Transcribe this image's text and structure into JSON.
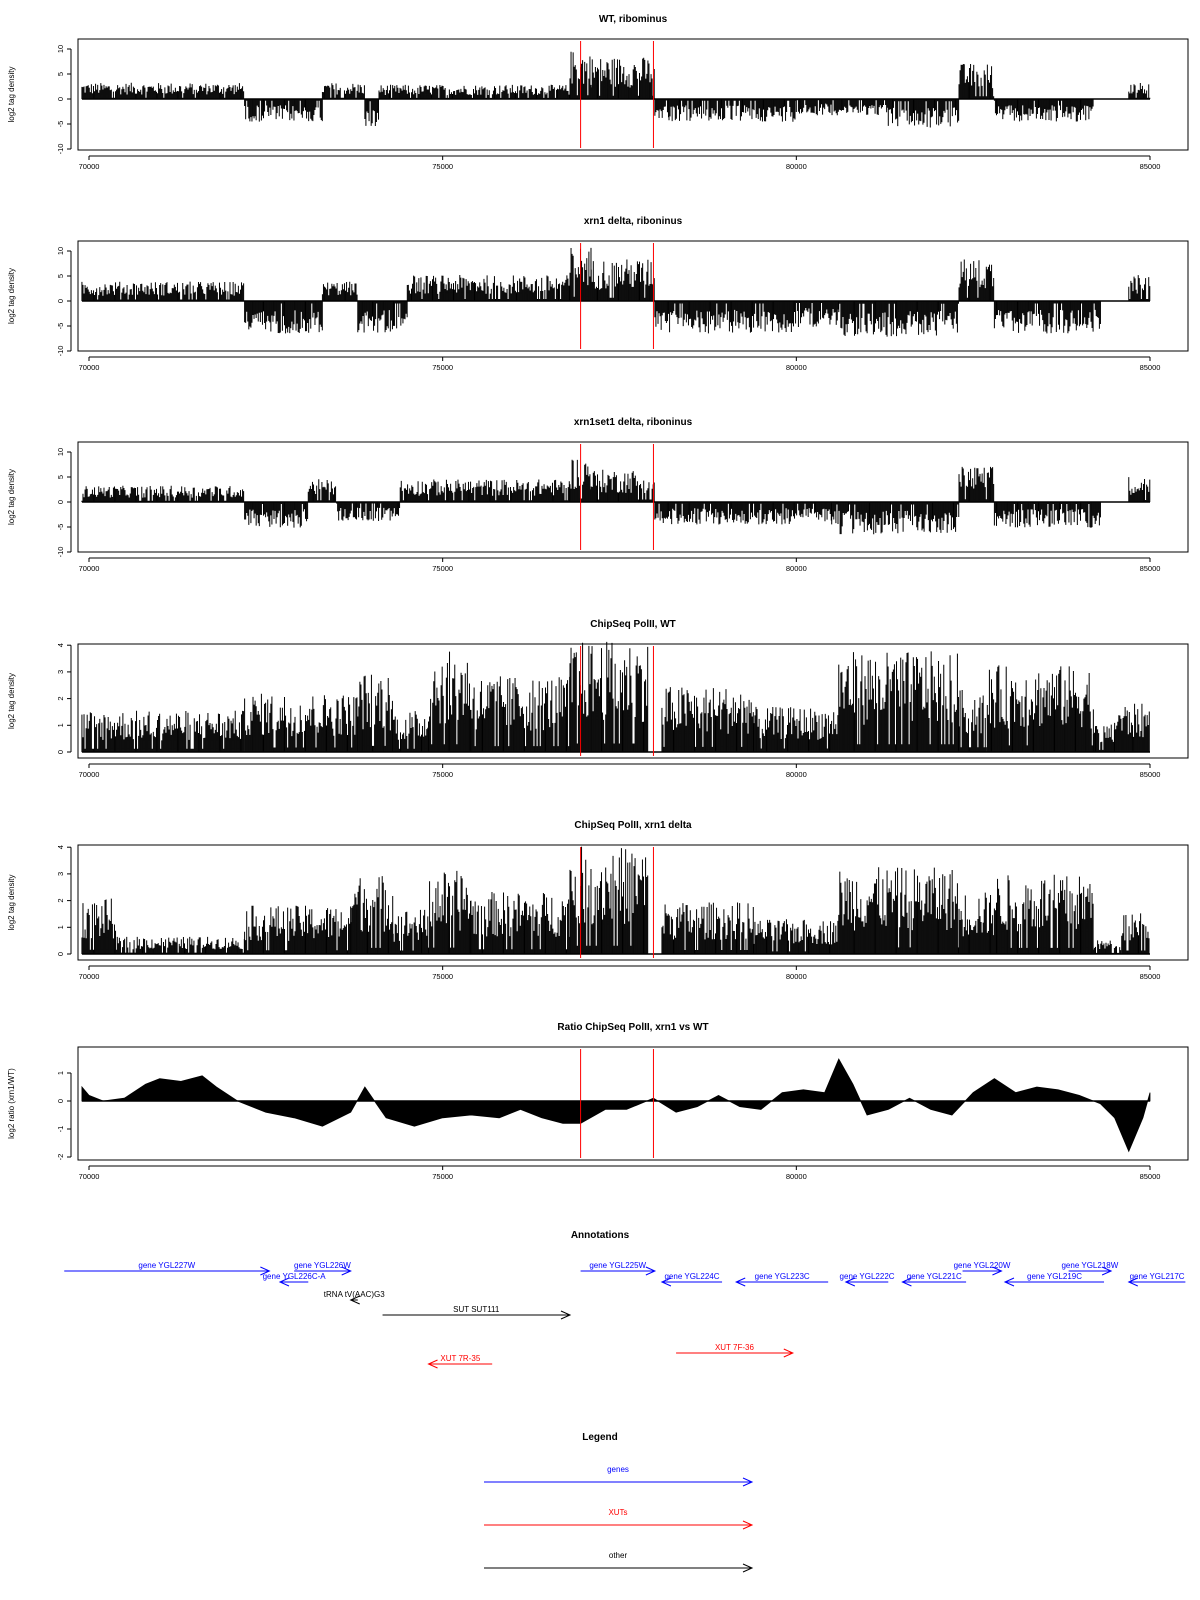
{
  "colors": {
    "gene": "#0000ff",
    "xut": "#ff0000",
    "other": "#000000",
    "marker": "#ff0000"
  },
  "marker_x": [
    76950,
    77980
  ],
  "chart_data": [
    {
      "type": "bar",
      "title": "WT, ribominus",
      "ylabel": "log2 tag density",
      "xlim": [
        70000,
        85000
      ],
      "ylim": [
        -10,
        10
      ],
      "xticks": [
        "70000",
        "75000",
        "80000",
        "85000"
      ],
      "yticks": [
        "10",
        "5",
        "0",
        "-5",
        "-10"
      ],
      "grid": false,
      "segments": [
        {
          "x": [
            69900,
            72200
          ],
          "y": 2.5
        },
        {
          "x": [
            72200,
            73300
          ],
          "y": -3.5
        },
        {
          "x": [
            73300,
            73900
          ],
          "y": 2.5
        },
        {
          "x": [
            73900,
            74100
          ],
          "y": -4.5
        },
        {
          "x": [
            74100,
            76800
          ],
          "y": 2.2
        },
        {
          "x": [
            76800,
            77100
          ],
          "y": 7.5
        },
        {
          "x": [
            77100,
            78000
          ],
          "y": 6.5
        },
        {
          "x": [
            78000,
            78200
          ],
          "y": -3
        },
        {
          "x": [
            78200,
            80000
          ],
          "y": -3.5
        },
        {
          "x": [
            80000,
            81300
          ],
          "y": -2.5
        },
        {
          "x": [
            81300,
            82300
          ],
          "y": -4.5
        },
        {
          "x": [
            82300,
            82800
          ],
          "y": 5.5
        },
        {
          "x": [
            82800,
            84200
          ],
          "y": -3.5
        },
        {
          "x": [
            84200,
            84700
          ],
          "y": 0
        },
        {
          "x": [
            84700,
            85000
          ],
          "y": 2.5
        }
      ]
    },
    {
      "type": "bar",
      "title": "xrn1 delta, riboninus",
      "ylabel": "log2 tag density",
      "xlim": [
        70000,
        85000
      ],
      "ylim": [
        -10,
        10
      ],
      "xticks": [
        "70000",
        "75000",
        "80000",
        "85000"
      ],
      "yticks": [
        "10",
        "5",
        "0",
        "-5",
        "-10"
      ],
      "grid": false,
      "segments": [
        {
          "x": [
            69900,
            72200
          ],
          "y": 3
        },
        {
          "x": [
            72200,
            73300
          ],
          "y": -5
        },
        {
          "x": [
            73300,
            73800
          ],
          "y": 3
        },
        {
          "x": [
            73800,
            74500
          ],
          "y": -5
        },
        {
          "x": [
            74500,
            76800
          ],
          "y": 4
        },
        {
          "x": [
            76800,
            77100
          ],
          "y": 8.5
        },
        {
          "x": [
            77100,
            78000
          ],
          "y": 6.5
        },
        {
          "x": [
            78000,
            80000
          ],
          "y": -5
        },
        {
          "x": [
            80000,
            80600
          ],
          "y": -4
        },
        {
          "x": [
            80600,
            82300
          ],
          "y": -5.5
        },
        {
          "x": [
            82300,
            82800
          ],
          "y": 6.5
        },
        {
          "x": [
            82800,
            84300
          ],
          "y": -5
        },
        {
          "x": [
            84300,
            84700
          ],
          "y": 0
        },
        {
          "x": [
            84700,
            85000
          ],
          "y": 4
        }
      ]
    },
    {
      "type": "bar",
      "title": "xrn1set1 delta, riboninus",
      "ylabel": "log2 tag density",
      "xlim": [
        70000,
        85000
      ],
      "ylim": [
        -10,
        10
      ],
      "xticks": [
        "70000",
        "75000",
        "80000",
        "85000"
      ],
      "yticks": [
        "10",
        "5",
        "0",
        "-5",
        "-10"
      ],
      "grid": false,
      "segments": [
        {
          "x": [
            69900,
            72200
          ],
          "y": 2.5
        },
        {
          "x": [
            72200,
            73100
          ],
          "y": -4
        },
        {
          "x": [
            73100,
            73500
          ],
          "y": 3.5
        },
        {
          "x": [
            73500,
            74400
          ],
          "y": -3
        },
        {
          "x": [
            74400,
            76800
          ],
          "y": 3.5
        },
        {
          "x": [
            76800,
            77100
          ],
          "y": 7
        },
        {
          "x": [
            77100,
            78000
          ],
          "y": 5
        },
        {
          "x": [
            78000,
            80500
          ],
          "y": -3.5
        },
        {
          "x": [
            80500,
            82300
          ],
          "y": -5
        },
        {
          "x": [
            82300,
            82800
          ],
          "y": 5.5
        },
        {
          "x": [
            82800,
            84300
          ],
          "y": -4
        },
        {
          "x": [
            84300,
            84700
          ],
          "y": 0
        },
        {
          "x": [
            84700,
            85000
          ],
          "y": 4
        }
      ]
    },
    {
      "type": "bar",
      "title": "ChipSeq PolII, WT",
      "ylabel": "log2 tag density",
      "xlim": [
        70000,
        85000
      ],
      "ylim": [
        0,
        4
      ],
      "xticks": [
        "70000",
        "75000",
        "80000",
        "85000"
      ],
      "yticks": [
        "4",
        "3",
        "2",
        "1",
        "0"
      ],
      "grid": false,
      "segments": [
        {
          "x": [
            69900,
            72200
          ],
          "y": 1.2
        },
        {
          "x": [
            72200,
            73800
          ],
          "y": 1.7
        },
        {
          "x": [
            73800,
            74300
          ],
          "y": 2.3
        },
        {
          "x": [
            74300,
            74800
          ],
          "y": 1.2
        },
        {
          "x": [
            74800,
            75400
          ],
          "y": 2.9
        },
        {
          "x": [
            75400,
            76800
          ],
          "y": 2.2
        },
        {
          "x": [
            76800,
            77900
          ],
          "y": 3.2
        },
        {
          "x": [
            77900,
            78100
          ],
          "y": 0
        },
        {
          "x": [
            78100,
            79400
          ],
          "y": 1.9
        },
        {
          "x": [
            79400,
            80600
          ],
          "y": 1.3
        },
        {
          "x": [
            80600,
            82300
          ],
          "y": 2.9
        },
        {
          "x": [
            82300,
            82700
          ],
          "y": 1.8
        },
        {
          "x": [
            82700,
            84200
          ],
          "y": 2.5
        },
        {
          "x": [
            84200,
            84500
          ],
          "y": 0.8
        },
        {
          "x": [
            84500,
            85000
          ],
          "y": 1.4
        }
      ]
    },
    {
      "type": "bar",
      "title": "ChipSeq PolII, xrn1 delta",
      "ylabel": "log2 tag density",
      "xlim": [
        70000,
        85000
      ],
      "ylim": [
        0,
        4
      ],
      "xticks": [
        "70000",
        "75000",
        "80000",
        "85000"
      ],
      "yticks": [
        "4",
        "3",
        "2",
        "1",
        "0"
      ],
      "grid": false,
      "segments": [
        {
          "x": [
            69900,
            70400
          ],
          "y": 1.6
        },
        {
          "x": [
            70400,
            72200
          ],
          "y": 0.5
        },
        {
          "x": [
            72200,
            73700
          ],
          "y": 1.4
        },
        {
          "x": [
            73700,
            74300
          ],
          "y": 2.3
        },
        {
          "x": [
            74300,
            74800
          ],
          "y": 1.3
        },
        {
          "x": [
            74800,
            75400
          ],
          "y": 2.4
        },
        {
          "x": [
            75400,
            76800
          ],
          "y": 1.8
        },
        {
          "x": [
            76800,
            77900
          ],
          "y": 3.1
        },
        {
          "x": [
            77900,
            78100
          ],
          "y": 0
        },
        {
          "x": [
            78100,
            79400
          ],
          "y": 1.5
        },
        {
          "x": [
            79400,
            80600
          ],
          "y": 1.0
        },
        {
          "x": [
            80600,
            82300
          ],
          "y": 2.5
        },
        {
          "x": [
            82300,
            82800
          ],
          "y": 1.8
        },
        {
          "x": [
            82800,
            84200
          ],
          "y": 2.3
        },
        {
          "x": [
            84200,
            84600
          ],
          "y": 0.4
        },
        {
          "x": [
            84600,
            85000
          ],
          "y": 1.3
        }
      ]
    },
    {
      "type": "area",
      "title": "Ratio ChipSeq PolII, xrn1 vs WT",
      "ylabel": "log2 ratio (xrn1/WT)",
      "xlim": [
        70000,
        85000
      ],
      "ylim": [
        -2,
        1.5
      ],
      "xticks": [
        "70000",
        "75000",
        "80000",
        "85000"
      ],
      "yticks": [
        "1",
        "0",
        "-1",
        "-2"
      ],
      "grid": false,
      "x": [
        69900,
        70000,
        70200,
        70500,
        70800,
        71000,
        71300,
        71600,
        71800,
        72100,
        72500,
        72900,
        73300,
        73700,
        73900,
        74200,
        74600,
        75000,
        75400,
        75800,
        76100,
        76400,
        76700,
        76950,
        77300,
        77600,
        77980,
        78300,
        78600,
        78900,
        79200,
        79500,
        79800,
        80100,
        80400,
        80600,
        80800,
        81000,
        81300,
        81600,
        81900,
        82200,
        82500,
        82800,
        83100,
        83400,
        83700,
        84000,
        84300,
        84500,
        84700,
        84900,
        85000
      ],
      "y": [
        0.5,
        0.2,
        0.0,
        0.1,
        0.6,
        0.8,
        0.7,
        0.9,
        0.5,
        0.0,
        -0.4,
        -0.6,
        -0.9,
        -0.4,
        0.5,
        -0.6,
        -0.9,
        -0.6,
        -0.5,
        -0.6,
        -0.3,
        -0.6,
        -0.8,
        -0.8,
        -0.3,
        -0.3,
        0.1,
        -0.4,
        -0.2,
        0.2,
        -0.2,
        -0.3,
        0.3,
        0.4,
        0.3,
        1.5,
        0.6,
        -0.5,
        -0.3,
        0.1,
        -0.3,
        -0.5,
        0.3,
        0.8,
        0.3,
        0.5,
        0.4,
        0.2,
        -0.1,
        -0.6,
        -1.8,
        -0.6,
        0.3
      ]
    }
  ],
  "annotations": {
    "title": "Annotations",
    "items": [
      {
        "label": "gene YGL227W",
        "kind": "gene",
        "dir": "right",
        "x": [
          69650,
          72550
        ],
        "row": 0
      },
      {
        "label": "gene YGL226W",
        "kind": "gene",
        "dir": "right",
        "x": [
          72900,
          73700
        ],
        "row": 0
      },
      {
        "label": "gene YGL226C-A",
        "kind": "gene",
        "dir": "left",
        "x": [
          72700,
          73100
        ],
        "row": 1
      },
      {
        "label": "tRNA tV(AAC)G3",
        "kind": "other",
        "dir": "left",
        "x": [
          73700,
          73800
        ],
        "row": 2
      },
      {
        "label": "SUT SUT111",
        "kind": "other",
        "dir": "right",
        "x": [
          74150,
          76800
        ],
        "row": 3
      },
      {
        "label": "gene YGL225W",
        "kind": "gene",
        "dir": "right",
        "x": [
          76950,
          78000
        ],
        "row": 0
      },
      {
        "label": "gene YGL224C",
        "kind": "gene",
        "dir": "left",
        "x": [
          78100,
          78950
        ],
        "row": 1
      },
      {
        "label": "gene YGL223C",
        "kind": "gene",
        "dir": "left",
        "x": [
          79150,
          80450
        ],
        "row": 1
      },
      {
        "label": "gene YGL222C",
        "kind": "gene",
        "dir": "left",
        "x": [
          80700,
          81300
        ],
        "row": 1
      },
      {
        "label": "gene YGL221C",
        "kind": "gene",
        "dir": "left",
        "x": [
          81500,
          82400
        ],
        "row": 1
      },
      {
        "label": "gene YGL220W",
        "kind": "gene",
        "dir": "right",
        "x": [
          82350,
          82900
        ],
        "row": 0
      },
      {
        "label": "gene YGL219C",
        "kind": "gene",
        "dir": "left",
        "x": [
          82950,
          84350
        ],
        "row": 1
      },
      {
        "label": "gene YGL218W",
        "kind": "gene",
        "dir": "right",
        "x": [
          83850,
          84450
        ],
        "row": 0
      },
      {
        "label": "gene YGL217C",
        "kind": "gene",
        "dir": "left",
        "x": [
          84700,
          85500
        ],
        "row": 1
      },
      {
        "label": "XUT 7R-35",
        "kind": "xut",
        "dir": "left",
        "x": [
          74800,
          75700
        ],
        "row": 5
      },
      {
        "label": "XUT 7F-36",
        "kind": "xut",
        "dir": "right",
        "x": [
          78300,
          79950
        ],
        "row": 4
      }
    ]
  },
  "legend": {
    "title": "Legend",
    "items": [
      {
        "label": "genes",
        "kind": "gene"
      },
      {
        "label": "XUTs",
        "kind": "xut"
      },
      {
        "label": "other",
        "kind": "other"
      }
    ]
  }
}
